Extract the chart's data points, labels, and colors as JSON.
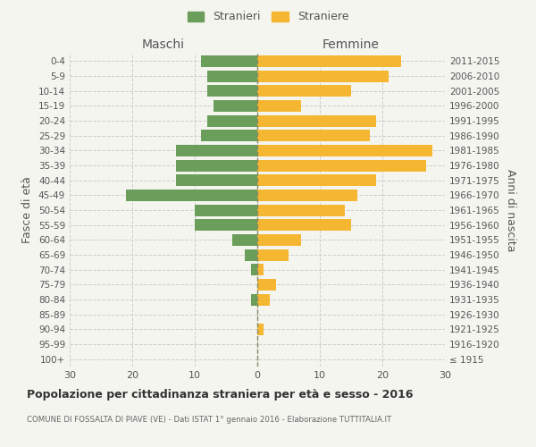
{
  "age_groups": [
    "100+",
    "95-99",
    "90-94",
    "85-89",
    "80-84",
    "75-79",
    "70-74",
    "65-69",
    "60-64",
    "55-59",
    "50-54",
    "45-49",
    "40-44",
    "35-39",
    "30-34",
    "25-29",
    "20-24",
    "15-19",
    "10-14",
    "5-9",
    "0-4"
  ],
  "birth_years": [
    "≤ 1915",
    "1916-1920",
    "1921-1925",
    "1926-1930",
    "1931-1935",
    "1936-1940",
    "1941-1945",
    "1946-1950",
    "1951-1955",
    "1956-1960",
    "1961-1965",
    "1966-1970",
    "1971-1975",
    "1976-1980",
    "1981-1985",
    "1986-1990",
    "1991-1995",
    "1996-2000",
    "2001-2005",
    "2006-2010",
    "2011-2015"
  ],
  "males": [
    0,
    0,
    0,
    0,
    1,
    0,
    1,
    2,
    4,
    10,
    10,
    21,
    13,
    13,
    13,
    9,
    8,
    7,
    8,
    8,
    9
  ],
  "females": [
    0,
    0,
    1,
    0,
    2,
    3,
    1,
    5,
    7,
    15,
    14,
    16,
    19,
    27,
    28,
    18,
    19,
    7,
    15,
    21,
    23
  ],
  "male_color": "#6a9e5a",
  "female_color": "#f5b731",
  "background_color": "#f5f5f0",
  "grid_color": "#cccccc",
  "dashed_line_color": "#888866",
  "title": "Popolazione per cittadinanza straniera per età e sesso - 2016",
  "subtitle": "COMUNE DI FOSSALTA DI PIAVE (VE) - Dati ISTAT 1° gennaio 2016 - Elaborazione TUTTITALIA.IT",
  "xlabel_left": "Maschi",
  "xlabel_right": "Femmine",
  "ylabel_left": "Fasce di età",
  "ylabel_right": "Anni di nascita",
  "legend_male": "Stranieri",
  "legend_female": "Straniere",
  "xlim": 30
}
